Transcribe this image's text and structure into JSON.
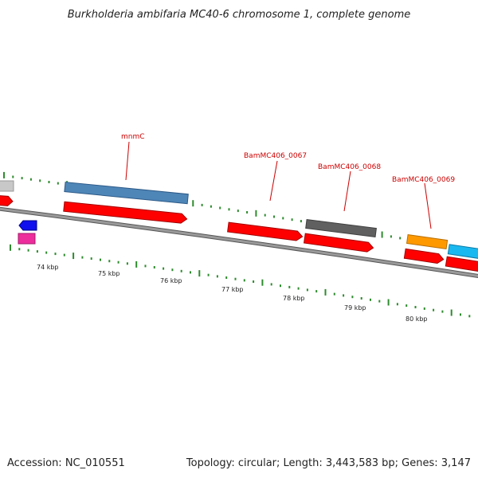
{
  "title": "Burkholderia ambifaria MC40-6 chromosome 1, complete genome",
  "accession_text": "Accession: NC_010551",
  "summary_text": "Topology: circular; Length: 3,443,583 bp; Genes: 3,147",
  "scale_labels": [
    "74 kbp",
    "75 kbp",
    "76 kbp",
    "77 kbp",
    "78 kbp",
    "79 kbp",
    "80 kbp"
  ],
  "gene_labels": [
    "mnmC",
    "BamMC406_0067",
    "BamMC406_0068",
    "BamMC406_0069"
  ],
  "colors": {
    "cds": "#ff0000",
    "backbone": "#888888",
    "tick": "#2e8b2e",
    "label": "#cc0000",
    "steelblue": "#4f86b8",
    "darkgray": "#606060",
    "orange": "#ff9900",
    "cyan": "#1ab8f0",
    "blue": "#1010ee",
    "pink": "#ee2d9c",
    "lightgray": "#c8c8c8"
  }
}
